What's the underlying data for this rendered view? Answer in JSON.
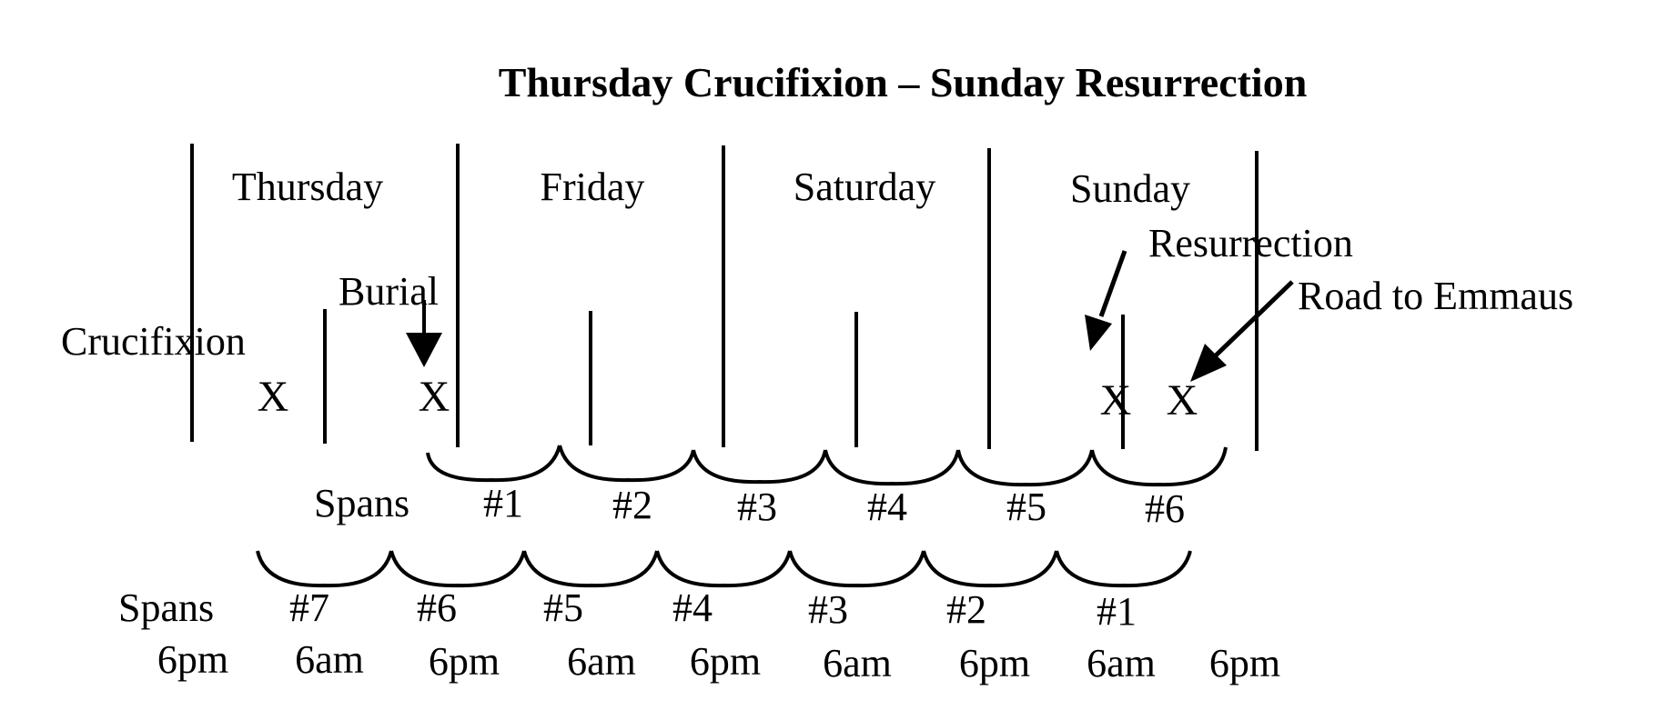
{
  "title": "Thursday Crucifixion – Sunday Resurrection",
  "days": [
    "Thursday",
    "Friday",
    "Saturday",
    "Sunday"
  ],
  "events": {
    "crucifixion": "Crucifixion",
    "burial": "Burial",
    "resurrection": "Resurrection",
    "road_to_emmaus": "Road to Emmaus"
  },
  "event_marker": "X",
  "upper_spans": {
    "label": "Spans",
    "items": [
      "#1",
      "#2",
      "#3",
      "#4",
      "#5",
      "#6"
    ]
  },
  "lower_spans": {
    "label": "Spans",
    "items": [
      "#7",
      "#6",
      "#5",
      "#4",
      "#3",
      "#2",
      "#1"
    ]
  },
  "times": [
    "6pm",
    "6am",
    "6pm",
    "6am",
    "6pm",
    "6am",
    "6pm",
    "6am",
    "6pm"
  ],
  "colors": {
    "ink": "#000000",
    "background": "#ffffff"
  }
}
